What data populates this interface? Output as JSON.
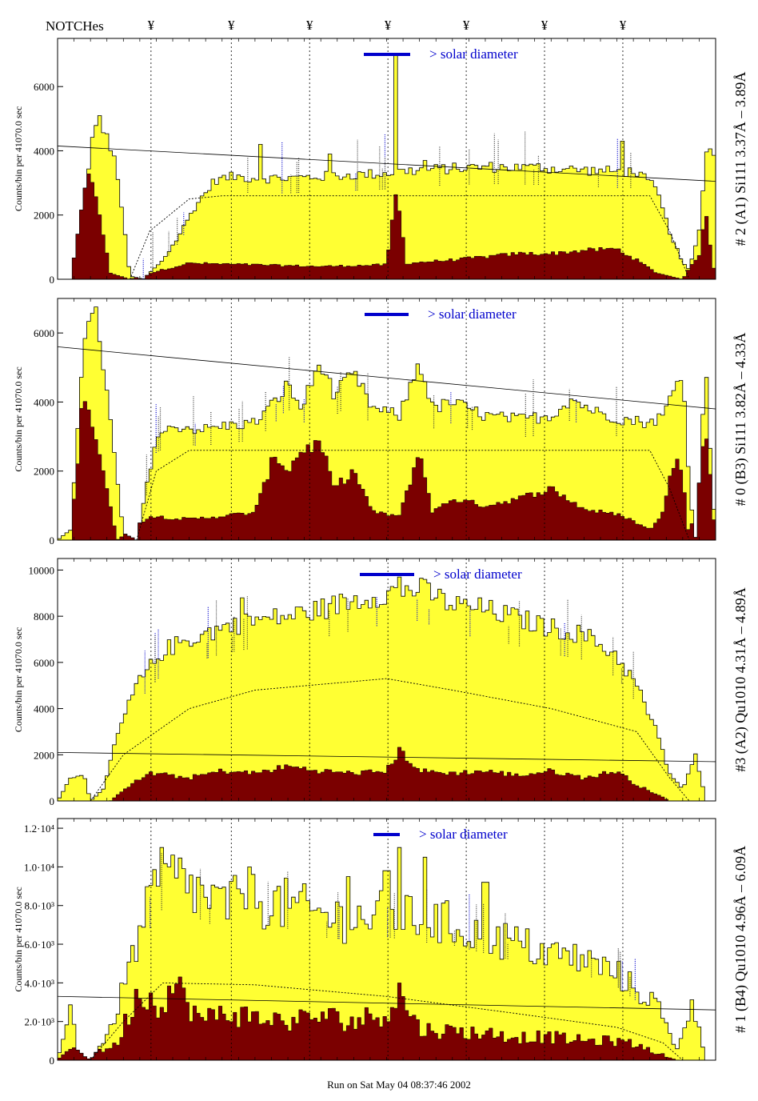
{
  "header": {
    "notches_label": "NOTCHes",
    "notch_symbol": "¥"
  },
  "footer": {
    "run_text": "Run on Sat May 04 08:37:46 2002"
  },
  "colors": {
    "fill": "#ffff33",
    "dark": "#7b0000",
    "blue": "#0000cc"
  },
  "chart_data": [
    {
      "type": "area",
      "panel": "A1",
      "right_title": "# 2 (A1) Si111  3.37Å – 3.89Å",
      "ylabel": "Counts/bin per  41070.0 sec",
      "annotation": "> solar diameter",
      "ylim": [
        0,
        7500
      ],
      "y_ticks": [
        {
          "value": 0,
          "label": "0"
        },
        {
          "value": 2000,
          "label": "2000"
        },
        {
          "value": 4000,
          "label": "4000"
        },
        {
          "value": 6000,
          "label": "6000"
        }
      ],
      "profile": [
        [
          0,
          0
        ],
        [
          0.02,
          0.5
        ],
        [
          0.06,
          5200
        ],
        [
          0.09,
          3500
        ],
        [
          0.11,
          100
        ],
        [
          0.13,
          0
        ],
        [
          0.16,
          600
        ],
        [
          0.18,
          1200
        ],
        [
          0.21,
          2300
        ],
        [
          0.24,
          3100
        ],
        [
          0.27,
          3200
        ],
        [
          0.3,
          3150
        ],
        [
          0.35,
          3150
        ],
        [
          0.4,
          3200
        ],
        [
          0.45,
          3250
        ],
        [
          0.5,
          3300
        ],
        [
          0.52,
          3350
        ],
        [
          0.55,
          3400
        ],
        [
          0.6,
          3450
        ],
        [
          0.65,
          3500
        ],
        [
          0.7,
          3480
        ],
        [
          0.75,
          3450
        ],
        [
          0.8,
          3400
        ],
        [
          0.85,
          3350
        ],
        [
          0.88,
          3350
        ],
        [
          0.91,
          2800
        ],
        [
          0.93,
          1500
        ],
        [
          0.95,
          500
        ],
        [
          0.96,
          300
        ],
        [
          0.975,
          1500
        ],
        [
          0.985,
          4000
        ],
        [
          1.0,
          4000
        ]
      ],
      "spikes": [
        [
          0.31,
          4200
        ],
        [
          0.415,
          3900
        ],
        [
          0.515,
          7000
        ],
        [
          0.56,
          3700
        ],
        [
          0.73,
          3600
        ],
        [
          0.86,
          4300
        ]
      ],
      "dark_profile": [
        [
          0,
          0
        ],
        [
          0.02,
          0
        ],
        [
          0.04,
          3500
        ],
        [
          0.06,
          2500
        ],
        [
          0.08,
          200
        ],
        [
          0.11,
          0
        ],
        [
          0.16,
          300
        ],
        [
          0.2,
          500
        ],
        [
          0.3,
          450
        ],
        [
          0.4,
          400
        ],
        [
          0.5,
          450
        ],
        [
          0.515,
          2800
        ],
        [
          0.53,
          500
        ],
        [
          0.6,
          600
        ],
        [
          0.7,
          800
        ],
        [
          0.75,
          800
        ],
        [
          0.8,
          900
        ],
        [
          0.85,
          950
        ],
        [
          0.88,
          600
        ],
        [
          0.91,
          200
        ],
        [
          0.95,
          0
        ],
        [
          0.975,
          800
        ],
        [
          0.985,
          2000
        ],
        [
          1.0,
          0
        ]
      ],
      "dotted_model": [
        [
          0.11,
          0
        ],
        [
          0.14,
          1500
        ],
        [
          0.2,
          2500
        ],
        [
          0.25,
          2600
        ],
        [
          0.9,
          2600
        ],
        [
          0.93,
          1500
        ],
        [
          0.96,
          0
        ]
      ],
      "baseline_line": [
        [
          0,
          4150
        ],
        [
          1,
          3050
        ]
      ]
    },
    {
      "type": "area",
      "panel": "B3",
      "right_title": "# 0 (B3) Si111  3.82Å – 4.33Å",
      "ylabel": "Counts/bin per  41070.0 sec",
      "annotation": "> solar diameter",
      "ylim": [
        0,
        7000
      ],
      "y_ticks": [
        {
          "value": 0,
          "label": "0"
        },
        {
          "value": 2000,
          "label": "2000"
        },
        {
          "value": 4000,
          "label": "4000"
        },
        {
          "value": 6000,
          "label": "6000"
        }
      ],
      "profile": [
        [
          0,
          0
        ],
        [
          0.02,
          300
        ],
        [
          0.04,
          6000
        ],
        [
          0.06,
          6500
        ],
        [
          0.08,
          3500
        ],
        [
          0.1,
          200
        ],
        [
          0.12,
          0
        ],
        [
          0.15,
          3000
        ],
        [
          0.18,
          3300
        ],
        [
          0.22,
          3200
        ],
        [
          0.25,
          3300
        ],
        [
          0.3,
          3400
        ],
        [
          0.33,
          4000
        ],
        [
          0.35,
          4500
        ],
        [
          0.37,
          3800
        ],
        [
          0.4,
          5200
        ],
        [
          0.42,
          4200
        ],
        [
          0.45,
          4800
        ],
        [
          0.48,
          3800
        ],
        [
          0.52,
          3600
        ],
        [
          0.55,
          5200
        ],
        [
          0.57,
          3800
        ],
        [
          0.6,
          4000
        ],
        [
          0.65,
          3600
        ],
        [
          0.7,
          3500
        ],
        [
          0.75,
          3600
        ],
        [
          0.78,
          4100
        ],
        [
          0.82,
          3700
        ],
        [
          0.86,
          3500
        ],
        [
          0.9,
          3400
        ],
        [
          0.92,
          3600
        ],
        [
          0.94,
          4500
        ],
        [
          0.95,
          5000
        ],
        [
          0.96,
          1500
        ],
        [
          0.97,
          0
        ],
        [
          0.985,
          5000
        ],
        [
          1.0,
          0
        ]
      ],
      "spikes": [],
      "dark_profile": [
        [
          0,
          0
        ],
        [
          0.02,
          0
        ],
        [
          0.04,
          4500
        ],
        [
          0.07,
          2000
        ],
        [
          0.09,
          0
        ],
        [
          0.14,
          700
        ],
        [
          0.2,
          600
        ],
        [
          0.3,
          800
        ],
        [
          0.33,
          2500
        ],
        [
          0.35,
          2000
        ],
        [
          0.37,
          2600
        ],
        [
          0.4,
          2800
        ],
        [
          0.42,
          1500
        ],
        [
          0.45,
          2000
        ],
        [
          0.48,
          800
        ],
        [
          0.52,
          700
        ],
        [
          0.55,
          2600
        ],
        [
          0.57,
          800
        ],
        [
          0.6,
          1200
        ],
        [
          0.65,
          1000
        ],
        [
          0.7,
          1200
        ],
        [
          0.75,
          1500
        ],
        [
          0.8,
          900
        ],
        [
          0.86,
          700
        ],
        [
          0.9,
          300
        ],
        [
          0.92,
          800
        ],
        [
          0.94,
          2600
        ],
        [
          0.95,
          2000
        ],
        [
          0.96,
          0
        ],
        [
          0.985,
          3300
        ],
        [
          1.0,
          0
        ]
      ],
      "dotted_model": [
        [
          0.12,
          0
        ],
        [
          0.15,
          2000
        ],
        [
          0.2,
          2600
        ],
        [
          0.9,
          2600
        ],
        [
          0.93,
          1500
        ],
        [
          0.96,
          0
        ]
      ],
      "baseline_line": [
        [
          0,
          5600
        ],
        [
          1,
          3800
        ]
      ]
    },
    {
      "type": "area",
      "panel": "A2",
      "right_title": "#3 (A2) Qu1010  4.31Å – 4.89Å",
      "ylabel": "Counts/bin per  41070.0 sec",
      "annotation": "> solar diameter",
      "ylim": [
        0,
        10500
      ],
      "y_ticks": [
        {
          "value": 0,
          "label": "0"
        },
        {
          "value": 2000,
          "label": "2000"
        },
        {
          "value": 4000,
          "label": "4000"
        },
        {
          "value": 6000,
          "label": "6000"
        },
        {
          "value": 8000,
          "label": "8000"
        },
        {
          "value": 10000,
          "label": "10000"
        }
      ],
      "profile": [
        [
          0,
          0
        ],
        [
          0.02,
          1000
        ],
        [
          0.04,
          1200
        ],
        [
          0.05,
          0
        ],
        [
          0.07,
          500
        ],
        [
          0.09,
          2800
        ],
        [
          0.12,
          5000
        ],
        [
          0.16,
          6500
        ],
        [
          0.2,
          7000
        ],
        [
          0.25,
          7500
        ],
        [
          0.3,
          7800
        ],
        [
          0.35,
          8000
        ],
        [
          0.4,
          8300
        ],
        [
          0.45,
          8700
        ],
        [
          0.5,
          9000
        ],
        [
          0.55,
          9200
        ],
        [
          0.6,
          8500
        ],
        [
          0.65,
          8300
        ],
        [
          0.7,
          7900
        ],
        [
          0.75,
          7500
        ],
        [
          0.8,
          7200
        ],
        [
          0.85,
          6300
        ],
        [
          0.88,
          5000
        ],
        [
          0.91,
          3000
        ],
        [
          0.93,
          1200
        ],
        [
          0.95,
          500
        ],
        [
          0.97,
          2000
        ],
        [
          0.985,
          0
        ],
        [
          1.0,
          0
        ]
      ],
      "spikes": [
        [
          0.28,
          8800
        ],
        [
          0.29,
          8000
        ],
        [
          0.52,
          9700
        ],
        [
          0.53,
          9300
        ],
        [
          0.78,
          7000
        ]
      ],
      "dark_profile": [
        [
          0,
          0
        ],
        [
          0.08,
          0
        ],
        [
          0.1,
          500
        ],
        [
          0.14,
          1200
        ],
        [
          0.2,
          1000
        ],
        [
          0.25,
          1300
        ],
        [
          0.3,
          1200
        ],
        [
          0.35,
          1500
        ],
        [
          0.4,
          1300
        ],
        [
          0.45,
          1200
        ],
        [
          0.5,
          1300
        ],
        [
          0.52,
          2200
        ],
        [
          0.55,
          1300
        ],
        [
          0.6,
          1200
        ],
        [
          0.65,
          1300
        ],
        [
          0.7,
          1100
        ],
        [
          0.75,
          1300
        ],
        [
          0.8,
          1000
        ],
        [
          0.85,
          1300
        ],
        [
          0.88,
          700
        ],
        [
          0.91,
          300
        ],
        [
          0.93,
          0
        ],
        [
          1.0,
          0
        ]
      ],
      "dotted_model": [
        [
          0.05,
          0
        ],
        [
          0.1,
          2000
        ],
        [
          0.2,
          4000
        ],
        [
          0.3,
          4800
        ],
        [
          0.5,
          5300
        ],
        [
          0.6,
          4800
        ],
        [
          0.75,
          4000
        ],
        [
          0.88,
          3000
        ],
        [
          0.93,
          1000
        ],
        [
          0.96,
          0
        ]
      ],
      "baseline_line": [
        [
          0,
          2100
        ],
        [
          1,
          1700
        ]
      ]
    },
    {
      "type": "area",
      "panel": "B4",
      "right_title": "# 1 (B4) Qu1010 4.96Å – 6.09Å",
      "ylabel": "Counts/bin per  41070.0 sec",
      "annotation": "> solar diameter",
      "ylim": [
        0,
        12500
      ],
      "y_ticks": [
        {
          "value": 0,
          "label": "0"
        },
        {
          "value": 2000,
          "label": "2.0·10³"
        },
        {
          "value": 4000,
          "label": "4.0·10³"
        },
        {
          "value": 6000,
          "label": "6.0·10³"
        },
        {
          "value": 8000,
          "label": "8.0·10³"
        },
        {
          "value": 10000,
          "label": "1.0·10⁴"
        },
        {
          "value": 12000,
          "label": "1.2·10⁴"
        }
      ],
      "profile": [
        [
          0,
          0
        ],
        [
          0.02,
          3000
        ],
        [
          0.03,
          500
        ],
        [
          0.05,
          0
        ],
        [
          0.08,
          1500
        ],
        [
          0.12,
          6000
        ],
        [
          0.15,
          9000
        ],
        [
          0.18,
          9500
        ],
        [
          0.22,
          8500
        ],
        [
          0.25,
          8000
        ],
        [
          0.3,
          8300
        ],
        [
          0.35,
          8000
        ],
        [
          0.4,
          7500
        ],
        [
          0.45,
          7300
        ],
        [
          0.5,
          7500
        ],
        [
          0.55,
          7200
        ],
        [
          0.6,
          7000
        ],
        [
          0.65,
          6500
        ],
        [
          0.7,
          6000
        ],
        [
          0.75,
          5500
        ],
        [
          0.8,
          5200
        ],
        [
          0.85,
          4500
        ],
        [
          0.88,
          3600
        ],
        [
          0.91,
          3000
        ],
        [
          0.94,
          500
        ],
        [
          0.965,
          3000
        ],
        [
          0.985,
          0
        ],
        [
          1.0,
          0
        ]
      ],
      "spikes": [
        [
          0.16,
          11000
        ],
        [
          0.29,
          10000
        ],
        [
          0.44,
          9500
        ],
        [
          0.5,
          9800
        ],
        [
          0.52,
          11000
        ],
        [
          0.56,
          10500
        ],
        [
          0.65,
          9200
        ]
      ],
      "dark_profile": [
        [
          0,
          0
        ],
        [
          0.03,
          1000
        ],
        [
          0.06,
          400
        ],
        [
          0.09,
          800
        ],
        [
          0.12,
          3500
        ],
        [
          0.15,
          3000
        ],
        [
          0.18,
          3800
        ],
        [
          0.22,
          2000
        ],
        [
          0.25,
          2500
        ],
        [
          0.3,
          2200
        ],
        [
          0.35,
          2000
        ],
        [
          0.4,
          2300
        ],
        [
          0.45,
          2000
        ],
        [
          0.5,
          2500
        ],
        [
          0.52,
          3500
        ],
        [
          0.55,
          1600
        ],
        [
          0.6,
          1500
        ],
        [
          0.65,
          1400
        ],
        [
          0.7,
          1200
        ],
        [
          0.75,
          1200
        ],
        [
          0.8,
          1000
        ],
        [
          0.85,
          1000
        ],
        [
          0.88,
          800
        ],
        [
          0.91,
          400
        ],
        [
          0.94,
          0
        ],
        [
          1.0,
          0
        ]
      ],
      "dotted_model": [
        [
          0.05,
          0
        ],
        [
          0.1,
          2000
        ],
        [
          0.16,
          4000
        ],
        [
          0.3,
          3900
        ],
        [
          0.5,
          3300
        ],
        [
          0.7,
          2400
        ],
        [
          0.85,
          1700
        ],
        [
          0.92,
          900
        ],
        [
          0.95,
          0
        ]
      ],
      "baseline_line": [
        [
          0,
          3300
        ],
        [
          1,
          2600
        ]
      ]
    }
  ]
}
